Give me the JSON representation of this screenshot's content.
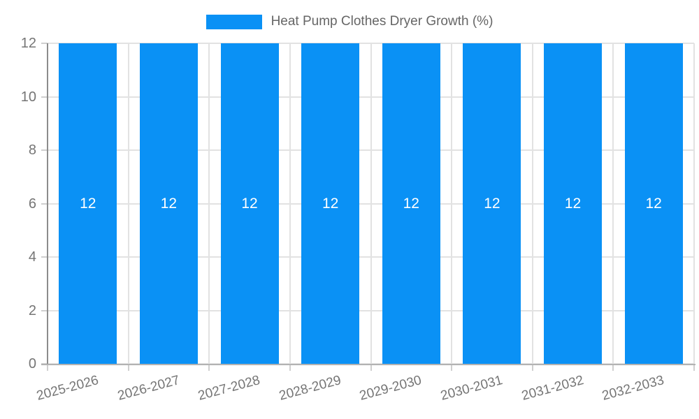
{
  "legend": {
    "label": "Heat Pump Clothes Dryer Growth (%)"
  },
  "chart_data": {
    "type": "bar",
    "title": "Heat Pump Clothes Dryer Growth (%)",
    "categories": [
      "2025-2026",
      "2026-2027",
      "2027-2028",
      "2028-2029",
      "2029-2030",
      "2030-2031",
      "2031-2032",
      "2032-2033"
    ],
    "values": [
      12,
      12,
      12,
      12,
      12,
      12,
      12,
      12
    ],
    "bar_labels": [
      "12",
      "12",
      "12",
      "12",
      "12",
      "12",
      "12",
      "12"
    ],
    "xlabel": "",
    "ylabel": "",
    "ylim": [
      0,
      12
    ],
    "yticks": [
      0,
      2,
      4,
      6,
      8,
      10,
      12
    ],
    "grid": true,
    "legend_position": "top",
    "colors": {
      "bar": "#0a91f5",
      "bar_label": "#ffffff",
      "tick_label": "#757575",
      "legend_text": "#666666",
      "grid": "#e2e2e2",
      "y_axis": "#8c8c8c",
      "x_axis": "#b3b3b3",
      "tick_mark": "#cfcfcf"
    }
  }
}
